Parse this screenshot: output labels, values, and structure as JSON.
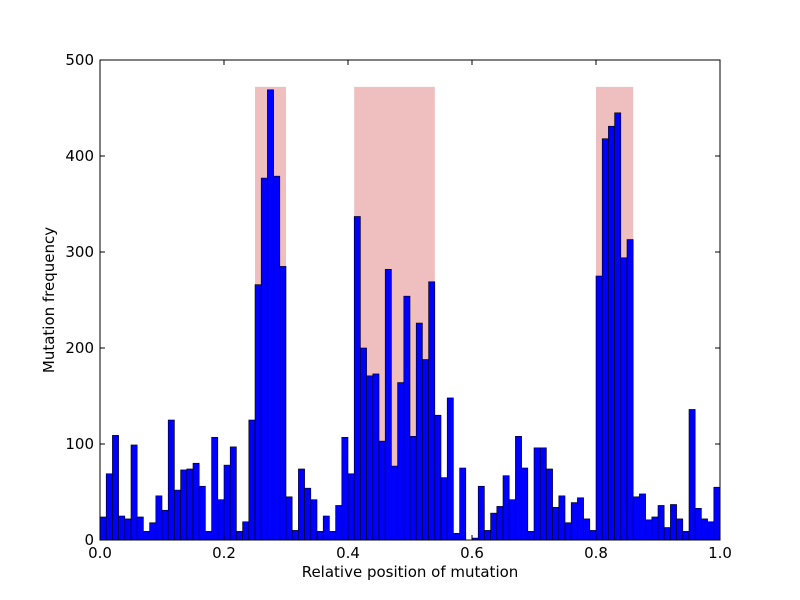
{
  "chart_data": {
    "type": "bar",
    "title": "",
    "xlabel": "Relative position of mutation",
    "ylabel": "Mutation frequency",
    "xlim": [
      0.0,
      1.0
    ],
    "ylim": [
      0,
      500
    ],
    "xticks": [
      "0.0",
      "0.2",
      "0.4",
      "0.6",
      "0.8",
      "1.0"
    ],
    "yticks": [
      "0",
      "100",
      "200",
      "300",
      "400",
      "500"
    ],
    "grid": false,
    "bar_color": "#0000ff",
    "bar_edge_color": "#000000",
    "highlight_color": "#efbfbf",
    "highlight_regions": [
      {
        "x0": 0.25,
        "x1": 0.3,
        "y_top": 472
      },
      {
        "x0": 0.41,
        "x1": 0.54,
        "y_top": 472
      },
      {
        "x0": 0.8,
        "x1": 0.86,
        "y_top": 472
      }
    ],
    "bin_width": 0.01,
    "values": [
      24,
      69,
      109,
      25,
      22,
      99,
      24,
      9,
      18,
      46,
      31,
      125,
      52,
      73,
      74,
      80,
      56,
      9,
      107,
      42,
      78,
      97,
      9,
      19,
      125,
      266,
      377,
      469,
      379,
      285,
      45,
      10,
      74,
      54,
      42,
      9,
      25,
      9,
      36,
      107,
      69,
      337,
      200,
      171,
      173,
      103,
      282,
      77,
      164,
      254,
      108,
      226,
      188,
      269,
      130,
      65,
      148,
      7,
      75,
      0,
      2,
      56,
      10,
      28,
      35,
      67,
      42,
      108,
      75,
      9,
      96,
      96,
      74,
      34,
      46,
      18,
      39,
      44,
      22,
      10,
      275,
      418,
      431,
      445,
      294,
      313,
      45,
      48,
      21,
      24,
      36,
      13,
      37,
      22,
      9,
      136,
      33,
      22,
      19,
      55
    ]
  }
}
